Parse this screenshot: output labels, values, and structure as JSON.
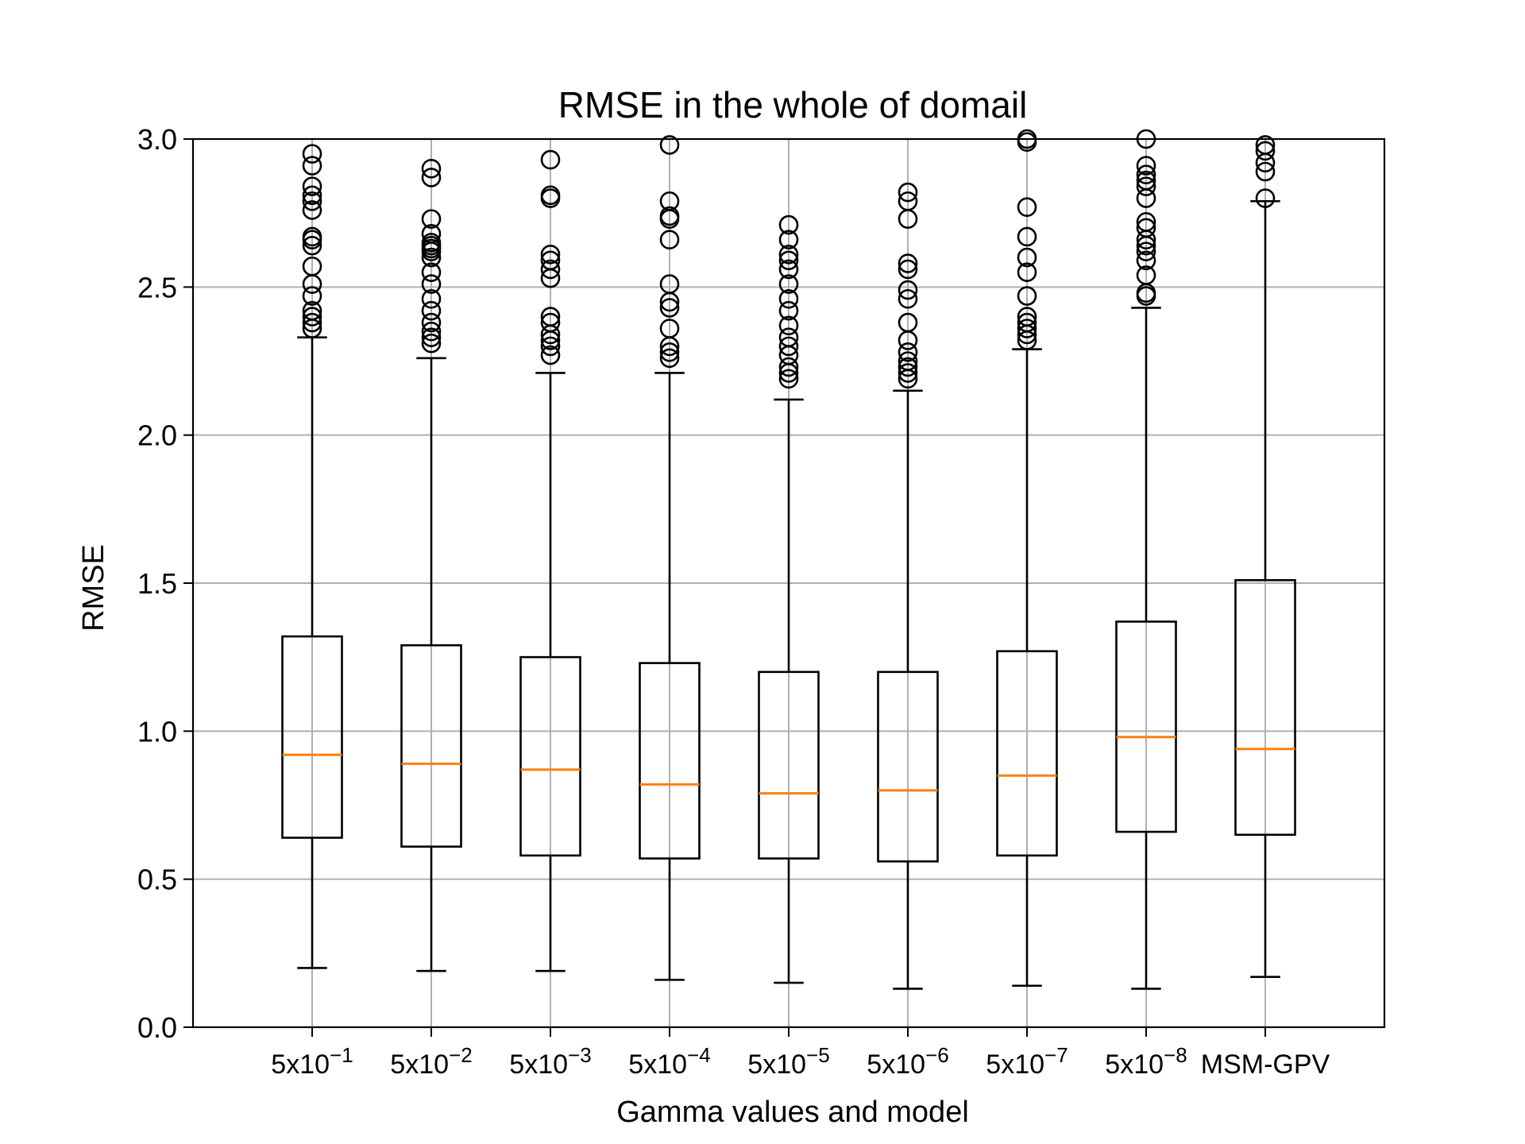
{
  "chart_data": {
    "type": "box",
    "title": "RMSE in the whole of domail",
    "xlabel": "Gamma values and model",
    "ylabel": "RMSE",
    "ylim": [
      0.0,
      3.0
    ],
    "yticks": [
      "0.0",
      "0.5",
      "1.0",
      "1.5",
      "2.0",
      "2.5",
      "3.0"
    ],
    "grid": true,
    "colors": {
      "box": "#000000",
      "median": "#ff7f0e",
      "grid": "#b0b0b0"
    },
    "categories": [
      {
        "base": "5x10",
        "exp": "−1"
      },
      {
        "base": "5x10",
        "exp": "−2"
      },
      {
        "base": "5x10",
        "exp": "−3"
      },
      {
        "base": "5x10",
        "exp": "−4"
      },
      {
        "base": "5x10",
        "exp": "−5"
      },
      {
        "base": "5x10",
        "exp": "−6"
      },
      {
        "base": "5x10",
        "exp": "−7"
      },
      {
        "base": "5x10",
        "exp": "−8"
      },
      {
        "base": "MSM-GPV",
        "exp": ""
      }
    ],
    "boxes": [
      {
        "whislo": 0.2,
        "q1": 0.64,
        "med": 0.92,
        "q3": 1.32,
        "whishi": 2.33,
        "fliers": [
          2.36,
          2.38,
          2.4,
          2.42,
          2.47,
          2.51,
          2.57,
          2.64,
          2.66,
          2.67,
          2.76,
          2.79,
          2.81,
          2.84,
          2.91,
          2.95
        ]
      },
      {
        "whislo": 0.19,
        "q1": 0.61,
        "med": 0.89,
        "q3": 1.29,
        "whishi": 2.26,
        "fliers": [
          2.31,
          2.33,
          2.35,
          2.38,
          2.42,
          2.46,
          2.51,
          2.55,
          2.6,
          2.62,
          2.63,
          2.64,
          2.65,
          2.68,
          2.73,
          2.87,
          2.9
        ]
      },
      {
        "whislo": 0.19,
        "q1": 0.58,
        "med": 0.87,
        "q3": 1.25,
        "whishi": 2.21,
        "fliers": [
          2.27,
          2.3,
          2.32,
          2.34,
          2.38,
          2.4,
          2.53,
          2.56,
          2.59,
          2.61,
          2.8,
          2.81,
          2.93
        ]
      },
      {
        "whislo": 0.16,
        "q1": 0.57,
        "med": 0.82,
        "q3": 1.23,
        "whishi": 2.21,
        "fliers": [
          2.26,
          2.28,
          2.3,
          2.36,
          2.43,
          2.45,
          2.51,
          2.66,
          2.73,
          2.74,
          2.79,
          2.98
        ]
      },
      {
        "whislo": 0.15,
        "q1": 0.57,
        "med": 0.79,
        "q3": 1.2,
        "whishi": 2.12,
        "fliers": [
          2.19,
          2.21,
          2.23,
          2.27,
          2.3,
          2.33,
          2.37,
          2.42,
          2.46,
          2.51,
          2.56,
          2.59,
          2.61,
          2.66,
          2.71
        ]
      },
      {
        "whislo": 0.13,
        "q1": 0.56,
        "med": 0.8,
        "q3": 1.2,
        "whishi": 2.15,
        "fliers": [
          2.19,
          2.21,
          2.23,
          2.25,
          2.28,
          2.32,
          2.38,
          2.46,
          2.49,
          2.56,
          2.58,
          2.73,
          2.79,
          2.82
        ]
      },
      {
        "whislo": 0.14,
        "q1": 0.58,
        "med": 0.85,
        "q3": 1.27,
        "whishi": 2.29,
        "fliers": [
          2.32,
          2.34,
          2.36,
          2.38,
          2.4,
          2.47,
          2.55,
          2.6,
          2.67,
          2.77,
          2.99,
          3.0
        ]
      },
      {
        "whislo": 0.13,
        "q1": 0.66,
        "med": 0.98,
        "q3": 1.37,
        "whishi": 2.43,
        "fliers": [
          2.47,
          2.48,
          2.54,
          2.59,
          2.62,
          2.64,
          2.66,
          2.7,
          2.72,
          2.8,
          2.84,
          2.86,
          2.88,
          2.91,
          3.0
        ]
      },
      {
        "whislo": 0.17,
        "q1": 0.65,
        "med": 0.94,
        "q3": 1.51,
        "whishi": 2.79,
        "fliers": [
          2.8,
          2.89,
          2.92,
          2.96,
          2.98
        ]
      }
    ]
  }
}
